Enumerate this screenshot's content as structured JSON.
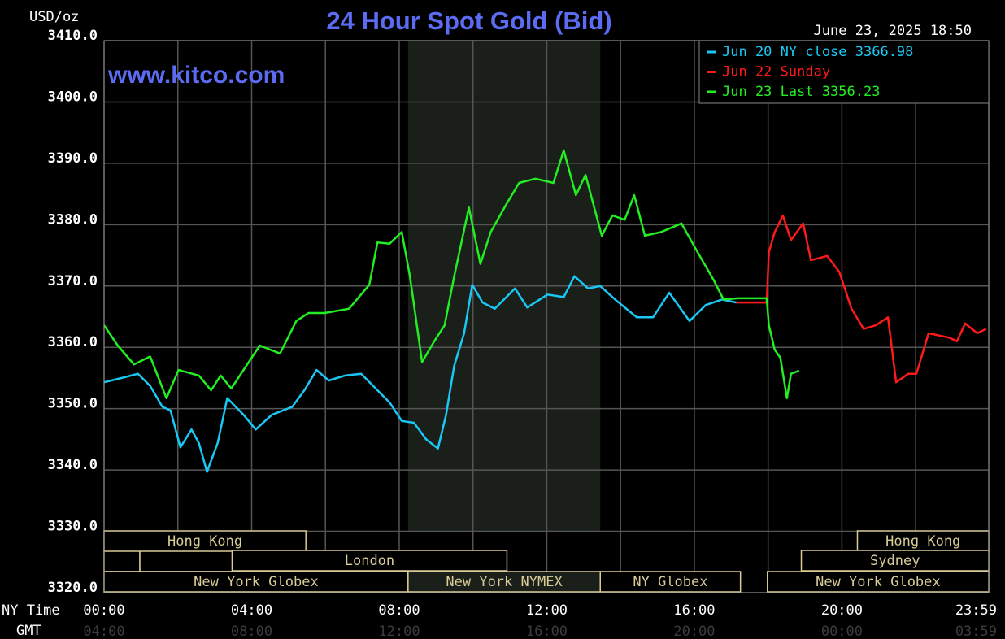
{
  "chart_data": {
    "type": "line",
    "title": "24 Hour Spot Gold (Bid)",
    "y_label": "USD/oz",
    "timestamp": "June 23, 2025 18:50",
    "watermark": "www.kitco.com",
    "x_label": "NY Time",
    "x2_label": "GMT",
    "xlim": [
      0,
      23.98
    ],
    "ylim": [
      3320,
      3410
    ],
    "xticks": [
      {
        "value": 0,
        "label": "00:00"
      },
      {
        "value": 4,
        "label": "04:00"
      },
      {
        "value": 8,
        "label": "08:00"
      },
      {
        "value": 12,
        "label": "12:00"
      },
      {
        "value": 16,
        "label": "16:00"
      },
      {
        "value": 20,
        "label": "20:00"
      },
      {
        "value": 23.98,
        "label": "23:59"
      }
    ],
    "x2ticks": [
      "04:00",
      "08:00",
      "12:00",
      "16:00",
      "20:00",
      "00:00",
      "03:59"
    ],
    "xminorticks": [
      2,
      6,
      10,
      14,
      18,
      22
    ],
    "yticks": [
      {
        "value": 3410,
        "label": "3410.0"
      },
      {
        "value": 3400,
        "label": "3400.0"
      },
      {
        "value": 3390,
        "label": "3390.0"
      },
      {
        "value": 3380,
        "label": "3380.0"
      },
      {
        "value": 3370,
        "label": "3370.0"
      },
      {
        "value": 3360,
        "label": "3360.0"
      },
      {
        "value": 3350,
        "label": "3350.0"
      },
      {
        "value": 3340,
        "label": "3340.0"
      },
      {
        "value": 3330,
        "label": "3330.0"
      },
      {
        "value": 3320,
        "label": "3320.0"
      }
    ],
    "grid": true,
    "legend": "top-right",
    "series": [
      {
        "name": "Jun 20 NY close 3366.98",
        "color": "#19c8f5",
        "x": [
          0,
          0.48,
          0.92,
          1.25,
          1.58,
          1.8,
          2.07,
          2.37,
          2.57,
          2.79,
          3.08,
          3.34,
          3.78,
          4.11,
          4.55,
          5.1,
          5.43,
          5.76,
          6.09,
          6.53,
          6.97,
          7.41,
          7.74,
          8.07,
          8.4,
          8.73,
          9.05,
          9.27,
          9.49,
          9.76,
          9.98,
          10.26,
          10.59,
          11.14,
          11.47,
          12.02,
          12.46,
          12.75,
          13.12,
          13.45,
          13.89,
          14.44,
          14.88,
          15.32,
          15.87,
          16.31,
          16.75,
          17.14
        ],
        "values": [
          3354.3,
          3355,
          3355.7,
          3353.7,
          3350.3,
          3349.7,
          3343.7,
          3346.6,
          3344.4,
          3339.7,
          3344.4,
          3351.7,
          3349,
          3346.6,
          3349,
          3350.3,
          3353,
          3356.3,
          3354.6,
          3355.4,
          3355.7,
          3353,
          3351,
          3348,
          3347.7,
          3345,
          3343.5,
          3349,
          3357,
          3362.3,
          3370.2,
          3367.3,
          3366.3,
          3369.6,
          3366.5,
          3368.6,
          3368.2,
          3371.6,
          3369.6,
          3370,
          3367.6,
          3364.9,
          3364.9,
          3368.9,
          3364.3,
          3366.9,
          3367.8,
          3367.3
        ]
      },
      {
        "name": "Jun 22 Sunday",
        "color": "#ff1a1a",
        "x": [
          17.14,
          17.96,
          18.02,
          18.18,
          18.4,
          18.62,
          18.95,
          19.16,
          19.6,
          19.93,
          20.26,
          20.59,
          20.92,
          21.25,
          21.47,
          21.8,
          22.02,
          22.35,
          22.9,
          23.12,
          23.34,
          23.67,
          23.91
        ],
        "values": [
          3367.3,
          3367.3,
          3375.5,
          3378.8,
          3381.5,
          3377.5,
          3380.2,
          3374.2,
          3374.9,
          3372.3,
          3366.3,
          3363,
          3363.6,
          3364.9,
          3354.3,
          3355.7,
          3355.7,
          3362.3,
          3361.6,
          3361,
          3363.9,
          3362.3,
          3363
        ]
      },
      {
        "name": "Jun 23 Last 3356.23",
        "color": "#22ee22",
        "x": [
          0,
          0.37,
          0.81,
          1.25,
          1.69,
          2.02,
          2.57,
          2.9,
          3.16,
          3.45,
          3.78,
          4.22,
          4.77,
          5.21,
          5.54,
          5.98,
          6.64,
          7.19,
          7.41,
          7.74,
          8.07,
          8.29,
          8.62,
          8.95,
          9.23,
          9.49,
          9.89,
          10.2,
          10.48,
          10.92,
          11.25,
          11.69,
          12.18,
          12.46,
          12.79,
          13.05,
          13.49,
          13.78,
          14.11,
          14.37,
          14.66,
          15.1,
          15.65,
          16.09,
          16.53,
          16.79,
          17.19,
          17.96,
          18.02,
          18.18,
          18.33,
          18.51,
          18.62,
          18.84
        ],
        "values": [
          3363.6,
          3360.3,
          3357.2,
          3358.5,
          3351.7,
          3356.3,
          3355.4,
          3353,
          3355.4,
          3353.3,
          3356.3,
          3360.3,
          3359,
          3364.3,
          3365.6,
          3365.6,
          3366.3,
          3370.2,
          3377.1,
          3376.9,
          3378.8,
          3371.6,
          3357.6,
          3361,
          3363.6,
          3371.6,
          3382.8,
          3373.6,
          3378.8,
          3383.5,
          3386.8,
          3387.5,
          3386.8,
          3392.1,
          3384.8,
          3388.1,
          3378.2,
          3381.5,
          3380.8,
          3384.8,
          3378.2,
          3378.8,
          3380.2,
          3375.5,
          3370.9,
          3367.8,
          3368,
          3368,
          3363.6,
          3359.6,
          3358.3,
          3351.7,
          3355.7,
          3356.2
        ]
      }
    ],
    "session_rows": [
      [
        {
          "label": "Hong Kong",
          "start": 0,
          "end": 5.47
        },
        {
          "label": "Hong Kong",
          "start": 20.42,
          "end": 23.98
        }
      ],
      [
        {
          "label": "London",
          "start": 3.47,
          "end": 10.92
        },
        {
          "label": "Sydney",
          "start": 18.9,
          "end": 23.98
        }
      ],
      [
        {
          "label": "New York Globex",
          "start": 0,
          "end": 8.24
        },
        {
          "label": "New York NYMEX",
          "start": 8.24,
          "end": 13.45
        },
        {
          "label": "NY Globex",
          "start": 13.45,
          "end": 17.25
        },
        {
          "label": "New York Globex",
          "start": 17.98,
          "end": 23.98
        }
      ]
    ]
  }
}
